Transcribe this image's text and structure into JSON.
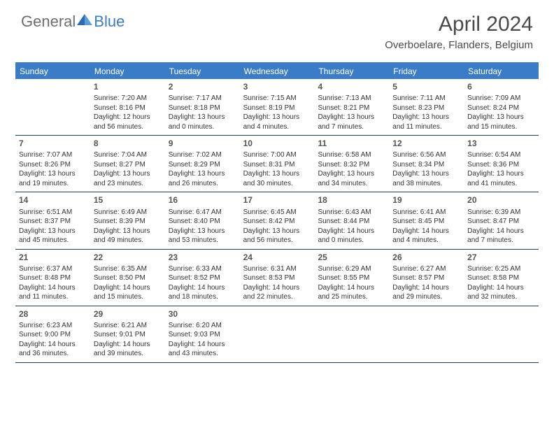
{
  "logo": {
    "text1": "General",
    "text2": "Blue"
  },
  "title": "April 2024",
  "location": "Overboelare, Flanders, Belgium",
  "colors": {
    "header_bg": "#3a7cc7",
    "border": "#26405c",
    "logo_gray": "#6d6e71",
    "logo_blue": "#3a7cc7",
    "text": "#333333",
    "background": "#ffffff"
  },
  "weekdays": [
    "Sunday",
    "Monday",
    "Tuesday",
    "Wednesday",
    "Thursday",
    "Friday",
    "Saturday"
  ],
  "weeks": [
    [
      null,
      {
        "n": "1",
        "sr": "7:20 AM",
        "ss": "8:16 PM",
        "dl": "12 hours and 56 minutes."
      },
      {
        "n": "2",
        "sr": "7:17 AM",
        "ss": "8:18 PM",
        "dl": "13 hours and 0 minutes."
      },
      {
        "n": "3",
        "sr": "7:15 AM",
        "ss": "8:19 PM",
        "dl": "13 hours and 4 minutes."
      },
      {
        "n": "4",
        "sr": "7:13 AM",
        "ss": "8:21 PM",
        "dl": "13 hours and 7 minutes."
      },
      {
        "n": "5",
        "sr": "7:11 AM",
        "ss": "8:23 PM",
        "dl": "13 hours and 11 minutes."
      },
      {
        "n": "6",
        "sr": "7:09 AM",
        "ss": "8:24 PM",
        "dl": "13 hours and 15 minutes."
      }
    ],
    [
      {
        "n": "7",
        "sr": "7:07 AM",
        "ss": "8:26 PM",
        "dl": "13 hours and 19 minutes."
      },
      {
        "n": "8",
        "sr": "7:04 AM",
        "ss": "8:27 PM",
        "dl": "13 hours and 23 minutes."
      },
      {
        "n": "9",
        "sr": "7:02 AM",
        "ss": "8:29 PM",
        "dl": "13 hours and 26 minutes."
      },
      {
        "n": "10",
        "sr": "7:00 AM",
        "ss": "8:31 PM",
        "dl": "13 hours and 30 minutes."
      },
      {
        "n": "11",
        "sr": "6:58 AM",
        "ss": "8:32 PM",
        "dl": "13 hours and 34 minutes."
      },
      {
        "n": "12",
        "sr": "6:56 AM",
        "ss": "8:34 PM",
        "dl": "13 hours and 38 minutes."
      },
      {
        "n": "13",
        "sr": "6:54 AM",
        "ss": "8:36 PM",
        "dl": "13 hours and 41 minutes."
      }
    ],
    [
      {
        "n": "14",
        "sr": "6:51 AM",
        "ss": "8:37 PM",
        "dl": "13 hours and 45 minutes."
      },
      {
        "n": "15",
        "sr": "6:49 AM",
        "ss": "8:39 PM",
        "dl": "13 hours and 49 minutes."
      },
      {
        "n": "16",
        "sr": "6:47 AM",
        "ss": "8:40 PM",
        "dl": "13 hours and 53 minutes."
      },
      {
        "n": "17",
        "sr": "6:45 AM",
        "ss": "8:42 PM",
        "dl": "13 hours and 56 minutes."
      },
      {
        "n": "18",
        "sr": "6:43 AM",
        "ss": "8:44 PM",
        "dl": "14 hours and 0 minutes."
      },
      {
        "n": "19",
        "sr": "6:41 AM",
        "ss": "8:45 PM",
        "dl": "14 hours and 4 minutes."
      },
      {
        "n": "20",
        "sr": "6:39 AM",
        "ss": "8:47 PM",
        "dl": "14 hours and 7 minutes."
      }
    ],
    [
      {
        "n": "21",
        "sr": "6:37 AM",
        "ss": "8:48 PM",
        "dl": "14 hours and 11 minutes."
      },
      {
        "n": "22",
        "sr": "6:35 AM",
        "ss": "8:50 PM",
        "dl": "14 hours and 15 minutes."
      },
      {
        "n": "23",
        "sr": "6:33 AM",
        "ss": "8:52 PM",
        "dl": "14 hours and 18 minutes."
      },
      {
        "n": "24",
        "sr": "6:31 AM",
        "ss": "8:53 PM",
        "dl": "14 hours and 22 minutes."
      },
      {
        "n": "25",
        "sr": "6:29 AM",
        "ss": "8:55 PM",
        "dl": "14 hours and 25 minutes."
      },
      {
        "n": "26",
        "sr": "6:27 AM",
        "ss": "8:57 PM",
        "dl": "14 hours and 29 minutes."
      },
      {
        "n": "27",
        "sr": "6:25 AM",
        "ss": "8:58 PM",
        "dl": "14 hours and 32 minutes."
      }
    ],
    [
      {
        "n": "28",
        "sr": "6:23 AM",
        "ss": "9:00 PM",
        "dl": "14 hours and 36 minutes."
      },
      {
        "n": "29",
        "sr": "6:21 AM",
        "ss": "9:01 PM",
        "dl": "14 hours and 39 minutes."
      },
      {
        "n": "30",
        "sr": "6:20 AM",
        "ss": "9:03 PM",
        "dl": "14 hours and 43 minutes."
      },
      null,
      null,
      null,
      null
    ]
  ],
  "labels": {
    "sunrise": "Sunrise:",
    "sunset": "Sunset:",
    "daylight": "Daylight:"
  }
}
